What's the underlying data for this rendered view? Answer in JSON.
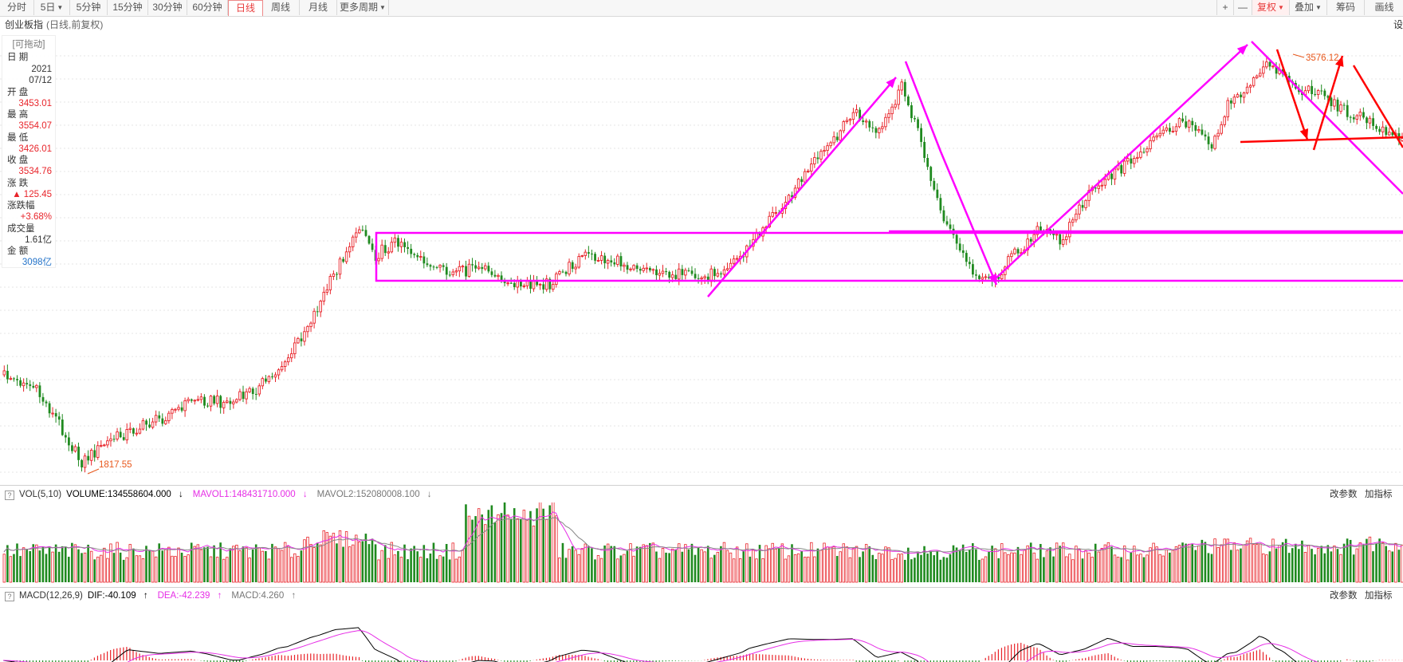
{
  "toolbar": {
    "tabs": [
      {
        "label": "分时",
        "caret": false,
        "active": false
      },
      {
        "label": "5日",
        "caret": true,
        "active": false
      },
      {
        "label": "5分钟",
        "caret": false,
        "active": false
      },
      {
        "label": "15分钟",
        "caret": false,
        "active": false
      },
      {
        "label": "30分钟",
        "caret": false,
        "active": false
      },
      {
        "label": "60分钟",
        "caret": false,
        "active": false
      },
      {
        "label": "日线",
        "caret": false,
        "active": true
      },
      {
        "label": "周线",
        "caret": false,
        "active": false
      },
      {
        "label": "月线",
        "caret": false,
        "active": false
      },
      {
        "label": "更多周期",
        "caret": true,
        "active": false
      }
    ],
    "right_tools": {
      "zoom_in": "+",
      "zoom_out": "—",
      "fuquan": "复权",
      "diejia": "叠加",
      "chouma": "筹码",
      "huaxian": "画线"
    }
  },
  "title": {
    "name": "创业板指",
    "sub": "(日线,前复权)",
    "corner": "设"
  },
  "info_panel": {
    "drag": "[可拖动]",
    "date_label": "日 期",
    "year": "2021",
    "md": "07/12",
    "open_label": "开 盘",
    "open": "3453.01",
    "high_label": "最 高",
    "high": "3554.07",
    "low_label": "最 低",
    "low": "3426.01",
    "close_label": "收 盘",
    "close": "3534.76",
    "change_label": "涨 跌",
    "change": "▲ 125.45",
    "pct_label": "涨跌幅",
    "pct": "+3.68%",
    "vol_label": "成交量",
    "vol": "1.61亿",
    "amt_label": "金 额",
    "amt": "3098亿"
  },
  "annotations": {
    "low": "1817.55",
    "high": "3576.12"
  },
  "vol_panel": {
    "name": "VOL(5,10)",
    "volume": "VOLUME:134558604.000",
    "mavol1": "MAVOL1:148431710.000",
    "mavol2": "MAVOL2:152080008.100",
    "btn1": "改参数",
    "btn2": "加指标"
  },
  "macd_panel": {
    "name": "MACD(12,26,9)",
    "dif": "DIF:-40.109",
    "dea": "DEA:-42.239",
    "macd": "MACD:4.260",
    "btn1": "改参数",
    "btn2": "加指标"
  },
  "colors": {
    "up": "#e8242a",
    "down": "#1f8a1f",
    "drawing": "#ff00ff",
    "trend": "#ff0000",
    "dif": "#000000",
    "dea": "#e62ee6"
  }
}
